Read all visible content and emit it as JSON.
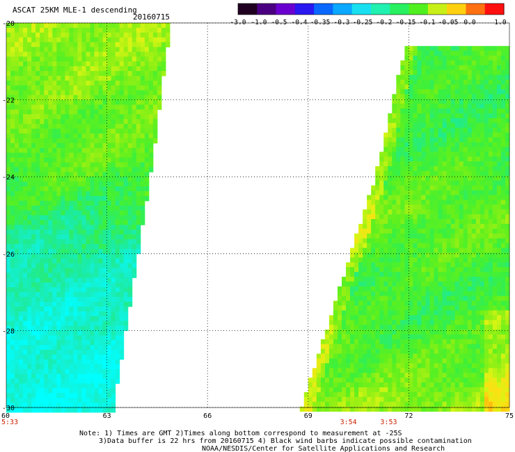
{
  "title": "ASCAT 25KM MLE-1 descending",
  "date": "20160715",
  "colorbar": {
    "ticks": [
      "-3.0",
      "-1.0",
      "-0.5",
      "-0.4",
      "-0.35",
      "-0.3",
      "-0.25",
      "-0.2",
      "-0.15",
      "-0.1",
      "-0.05",
      "0.0",
      "1.0"
    ],
    "colors": [
      "#200020",
      "#4a0080",
      "#6a00d0",
      "#2a18f0",
      "#0a68ff",
      "#0aa8ff",
      "#18e0f0",
      "#20f0b0",
      "#28f060",
      "#50f020",
      "#c8f018",
      "#ffd010",
      "#ff7010",
      "#ff1010"
    ]
  },
  "map": {
    "lat_labels": [
      "-20",
      "-22",
      "-24",
      "-26",
      "-28",
      "-30"
    ],
    "lon_labels": [
      "60",
      "63",
      "66",
      "69",
      "72",
      "75"
    ]
  },
  "times": [
    {
      "lon": 60,
      "label": "5:33"
    },
    {
      "lon": 70.2,
      "label": "3:54"
    },
    {
      "lon": 71.4,
      "label": "3:53"
    }
  ],
  "notes": {
    "line1": "Note: 1) Times are GMT 2)Times along bottom correspond to measurement at -25S",
    "line2": "3)Data buffer is 22 hrs from 20160715 4) Black wind barbs indicate possible contamination",
    "line3": "NOAA/NESDIS/Center for Satellite Applications and Research"
  },
  "time_color": "#cc2200",
  "chart_data": {
    "type": "heatmap",
    "title": "ASCAT 25KM MLE-1 descending",
    "xlim": [
      60,
      75
    ],
    "ylim": [
      -30,
      -20
    ],
    "x_ticks": [
      60,
      63,
      66,
      69,
      72,
      75
    ],
    "y_ticks": [
      -20,
      -22,
      -24,
      -26,
      -28,
      -30
    ],
    "legend": "top-right color bar",
    "swaths": [
      {
        "name": "west",
        "coverage": [
          {
            "lat": -20.0,
            "lon_min": 60.0,
            "lon_max": 64.9
          },
          {
            "lat": -24.0,
            "lon_min": 60.0,
            "lon_max": 64.3
          },
          {
            "lat": -30.0,
            "lon_min": 60.0,
            "lon_max": 63.2
          }
        ],
        "value_by_lat": [
          {
            "lat": -20.5,
            "value": -0.12
          },
          {
            "lat": -21.5,
            "value": -0.13
          },
          {
            "lat": -22.5,
            "value": -0.15
          },
          {
            "lat": -23.5,
            "value": -0.15
          },
          {
            "lat": -24.5,
            "value": -0.18
          },
          {
            "lat": -25.5,
            "value": -0.22
          },
          {
            "lat": -26.5,
            "value": -0.24
          },
          {
            "lat": -27.5,
            "value": -0.26
          },
          {
            "lat": -28.5,
            "value": -0.27
          },
          {
            "lat": -29.5,
            "value": -0.28
          }
        ]
      },
      {
        "name": "east",
        "coverage": [
          {
            "lat": -20.6,
            "lon_min": 71.9,
            "lon_max": 75.0
          },
          {
            "lat": -24.0,
            "lon_min": 71.0,
            "lon_max": 75.0
          },
          {
            "lat": -30.0,
            "lon_min": 68.8,
            "lon_max": 75.0
          }
        ],
        "value_by_lat": [
          {
            "lat": -21.0,
            "value": -0.17
          },
          {
            "lat": -22.0,
            "value": -0.18
          },
          {
            "lat": -23.0,
            "value": -0.18
          },
          {
            "lat": -24.0,
            "value": -0.16
          },
          {
            "lat": -25.0,
            "value": -0.15
          },
          {
            "lat": -26.0,
            "value": -0.16
          },
          {
            "lat": -27.0,
            "value": -0.18
          },
          {
            "lat": -28.0,
            "value": -0.17
          },
          {
            "lat": -29.0,
            "value": -0.15
          },
          {
            "lat": -30.0,
            "value": -0.12
          }
        ]
      }
    ]
  }
}
